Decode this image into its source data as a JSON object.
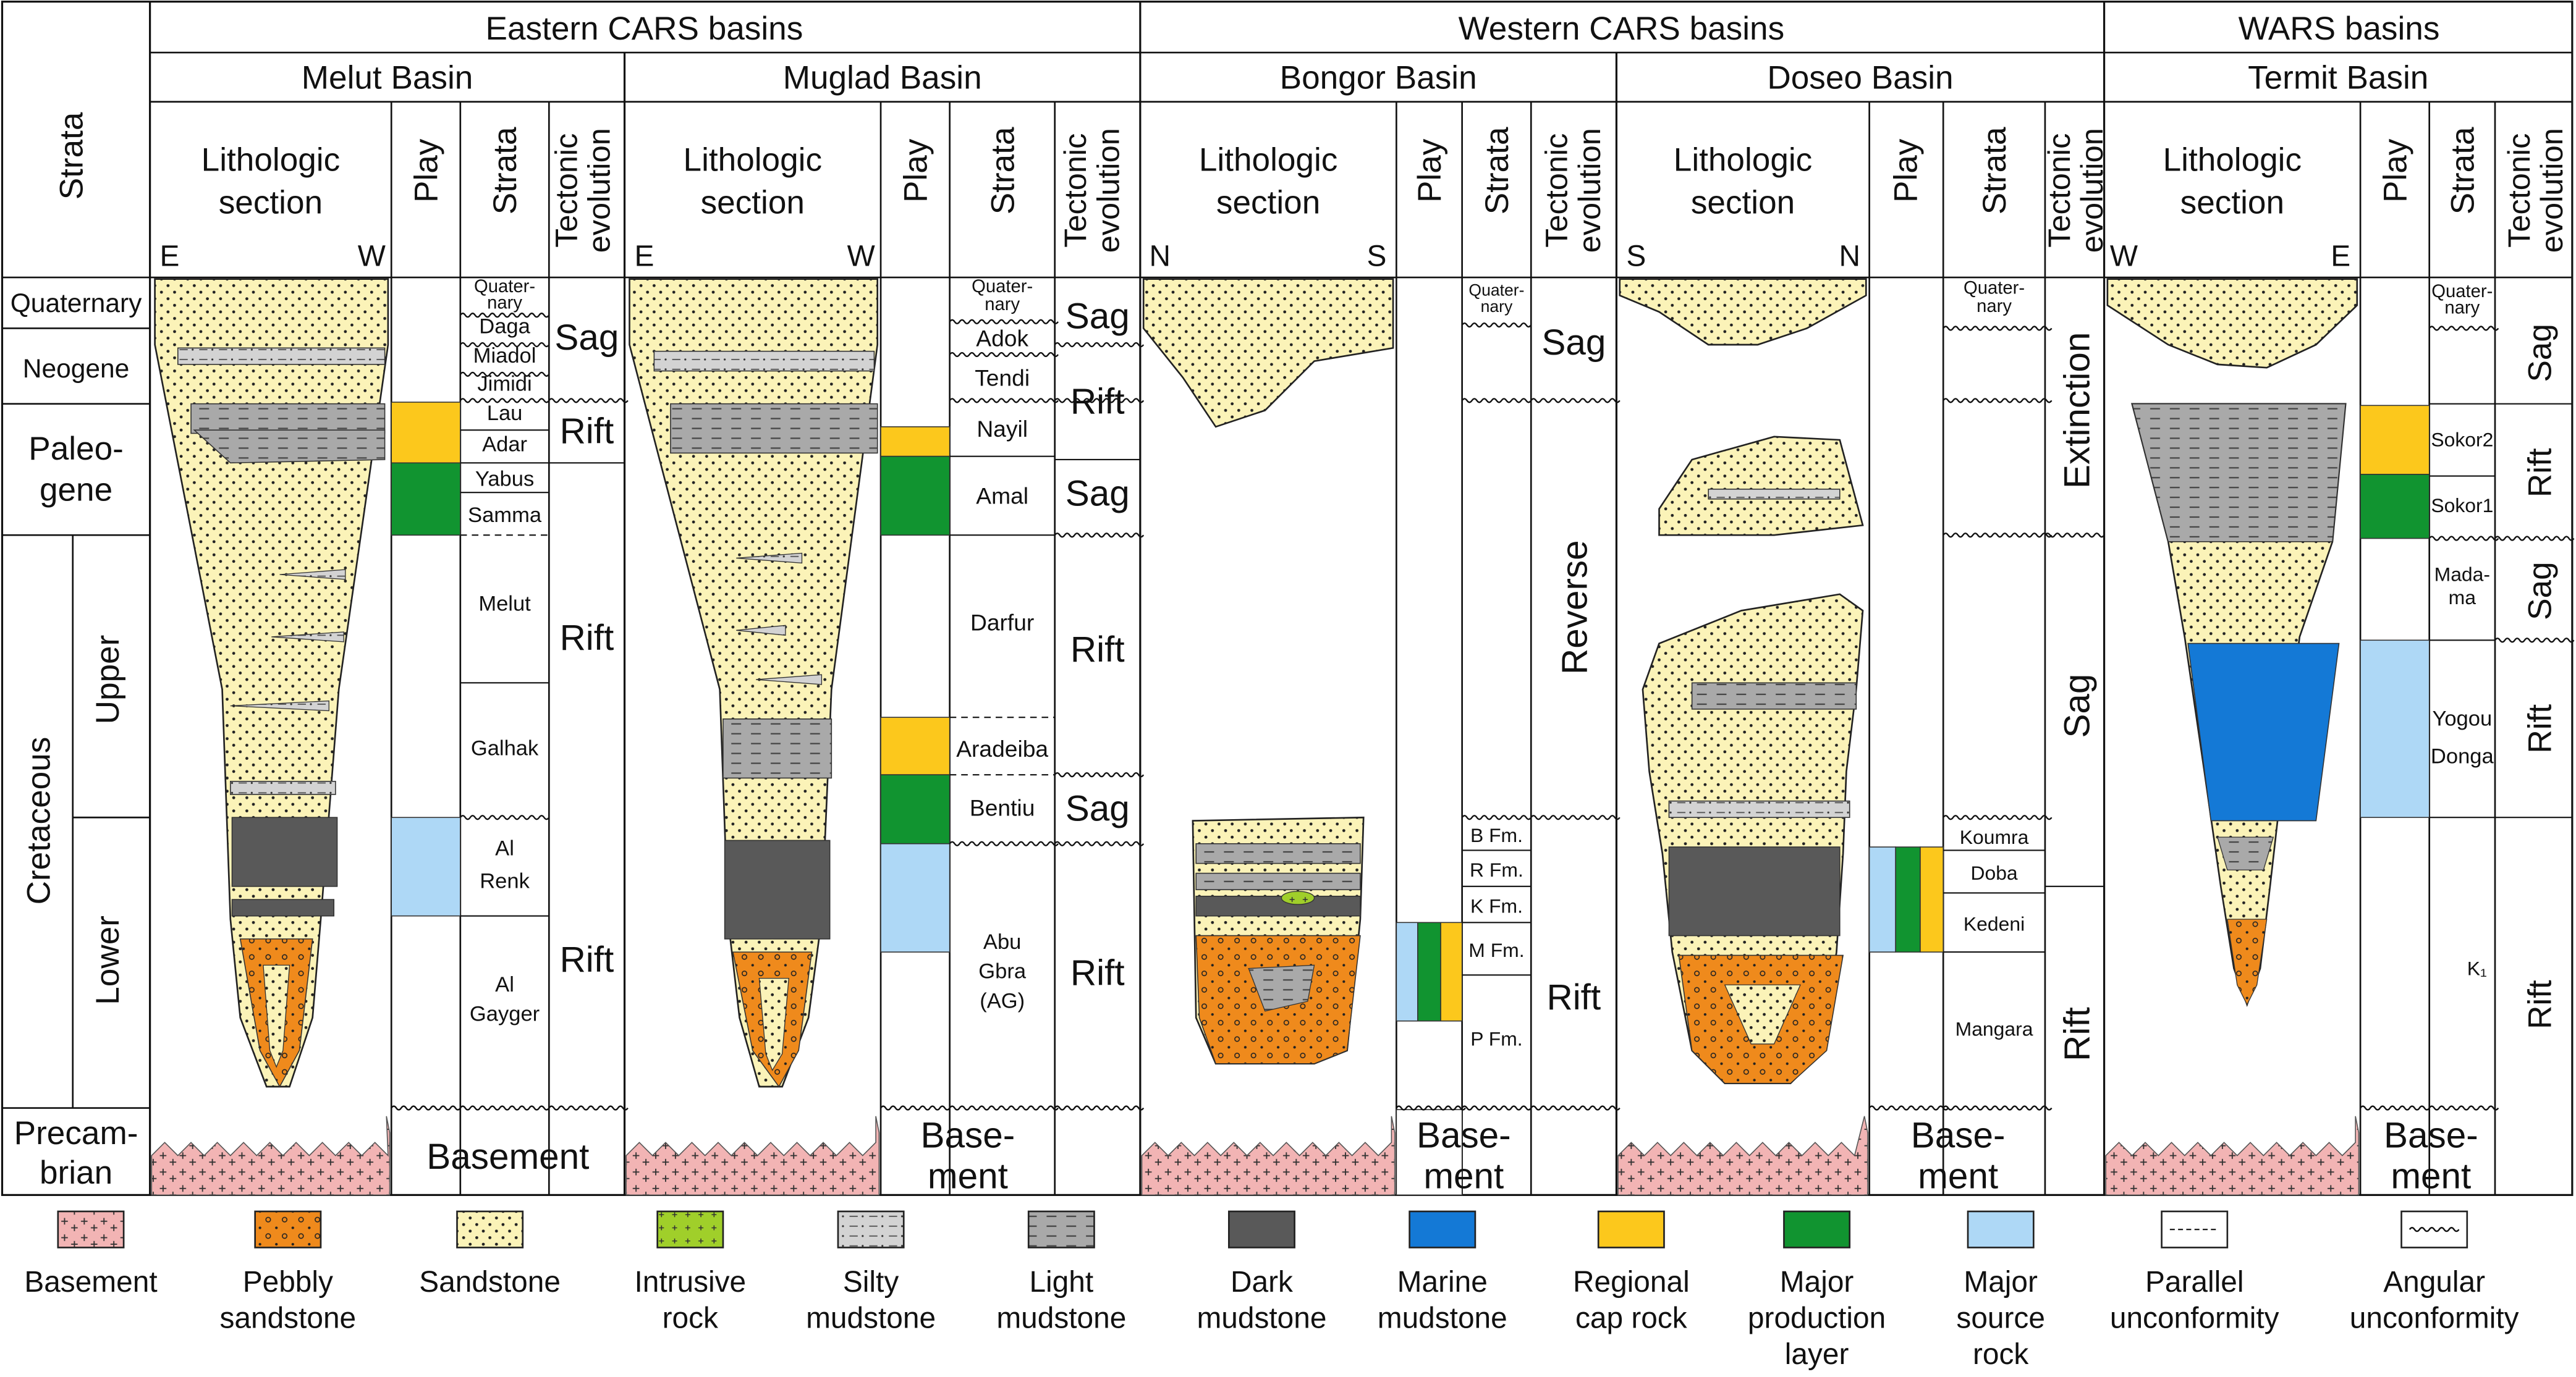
{
  "groups": [
    "Eastern CARS basins",
    "Western CARS basins",
    "WARS basins"
  ],
  "strata_header": "Strata",
  "column_headers": {
    "lithologic": [
      "Lithologic",
      "section"
    ],
    "play": "Play",
    "strata": "Strata",
    "tectonic": [
      "Tectonic",
      "evolution"
    ]
  },
  "left_strata": {
    "quaternary": "Quaternary",
    "neogene": "Neogene",
    "paleogene": [
      "Paleo-",
      "gene"
    ],
    "cretaceous": "Cretaceous",
    "upper": "Upper",
    "lower": "Lower",
    "precambrian": [
      "Precam-",
      "brian"
    ]
  },
  "basins": [
    {
      "name": "Melut Basin",
      "dir": [
        "E",
        "W"
      ],
      "strata": [
        "Quater-",
        "nary",
        "Daga",
        "Miadol",
        "Jimidi",
        "Lau",
        "Adar",
        "Yabus",
        "Samma",
        "Melut",
        "Galhak",
        "Al",
        "Renk",
        "Al",
        "Gayger"
      ],
      "tectonic": [
        "Sag",
        "Rift",
        "Rift",
        "Rift"
      ],
      "basement": "Basement"
    },
    {
      "name": "Muglad Basin",
      "dir": [
        "E",
        "W"
      ],
      "strata": [
        "Quater-",
        "nary",
        "Adok",
        "Tendi",
        "Nayil",
        "Amal",
        "Darfur",
        "Aradeiba",
        "Bentiu",
        "Abu",
        "Gbra",
        "(AG)"
      ],
      "tectonic": [
        "Sag",
        "Rift",
        "Sag",
        "Rift",
        "Sag",
        "Rift"
      ],
      "basement": [
        "Base-",
        "ment"
      ]
    },
    {
      "name": "Bongor Basin",
      "dir": [
        "N",
        "S"
      ],
      "strata": [
        "Quater-",
        "nary",
        "B Fm.",
        "R Fm.",
        "K Fm.",
        "M Fm.",
        "P Fm."
      ],
      "tectonic": [
        "Sag",
        "Reverse",
        "Rift"
      ],
      "basement": [
        "Base-",
        "ment"
      ]
    },
    {
      "name": "Doseo Basin",
      "dir": [
        "S",
        "N"
      ],
      "strata": [
        "Quater-",
        "nary",
        "Koumra",
        "Doba",
        "Kedeni",
        "Mangara"
      ],
      "tectonic": [
        "Extinction",
        "Sag",
        "Rift"
      ],
      "basement": [
        "Base-",
        "ment"
      ]
    },
    {
      "name": "Termit Basin",
      "dir": [
        "W",
        "E"
      ],
      "strata": [
        "Quater-",
        "nary",
        "Sokor2",
        "Sokor1",
        "Mada-",
        "ma",
        "Yogou",
        "Donga",
        "K₁"
      ],
      "tectonic": [
        "Sag",
        "Rift",
        "Sag",
        "Rift",
        "Rift"
      ],
      "basement": [
        "Base-",
        "ment"
      ]
    }
  ],
  "legend": [
    {
      "key": "basement",
      "label": [
        "Basement"
      ]
    },
    {
      "key": "pebbly",
      "label": [
        "Pebbly",
        "sandstone"
      ]
    },
    {
      "key": "sandstone",
      "label": [
        "Sandstone"
      ]
    },
    {
      "key": "intrusive",
      "label": [
        "Intrusive",
        "rock"
      ]
    },
    {
      "key": "silty",
      "label": [
        "Silty",
        "mudstone"
      ]
    },
    {
      "key": "light",
      "label": [
        "Light",
        "mudstone"
      ]
    },
    {
      "key": "dark",
      "label": [
        "Dark",
        "mudstone"
      ]
    },
    {
      "key": "marine",
      "label": [
        "Marine",
        "mudstone"
      ]
    },
    {
      "key": "cap",
      "label": [
        "Regional",
        "cap rock"
      ]
    },
    {
      "key": "production",
      "label": [
        "Major",
        "production",
        "layer"
      ]
    },
    {
      "key": "source",
      "label": [
        "Major",
        "source",
        "rock"
      ]
    },
    {
      "key": "parallel",
      "label": [
        "Parallel",
        "unconformity"
      ]
    },
    {
      "key": "angular",
      "label": [
        "Angular",
        "unconformity"
      ]
    }
  ],
  "colors": {
    "sandstone": "#fbf3b8",
    "pebbly": "#ef8a1c",
    "basement": "#f2b4b4",
    "light_mud": "#a9a9a9",
    "silty_mud": "#d3d3d3",
    "dark_mud": "#595959",
    "marine_mud": "#1479d6",
    "cap_rock": "#fcc81c",
    "production": "#119430",
    "source": "#aed8f6",
    "intrusive": "#a0cf2a"
  }
}
